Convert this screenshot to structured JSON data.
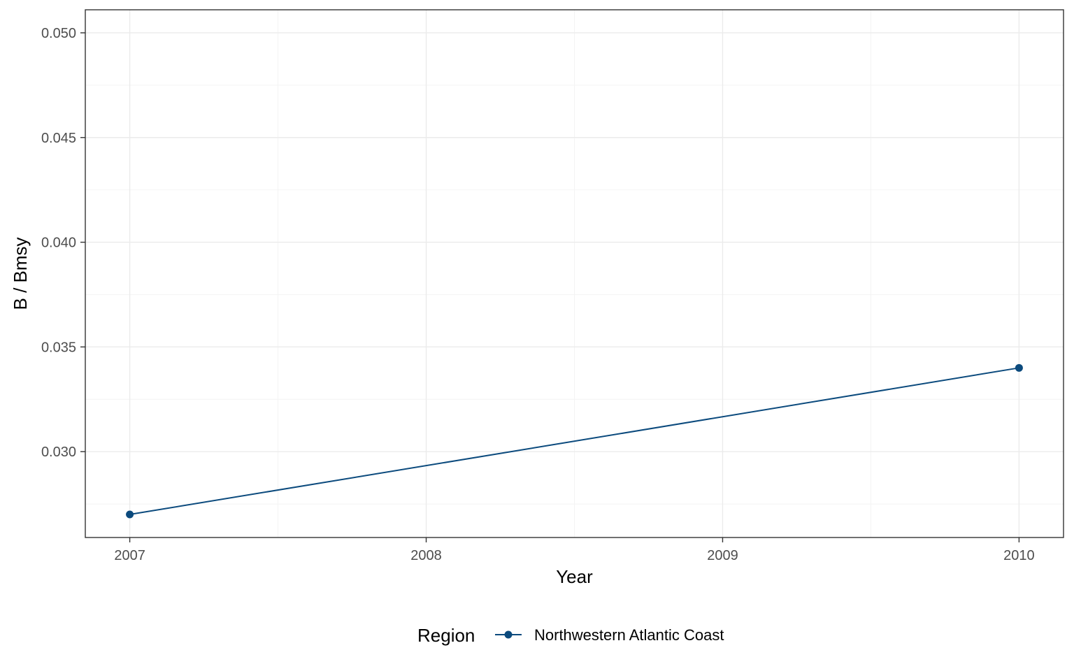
{
  "chart_data": {
    "type": "line",
    "title": "",
    "xlabel": "Year",
    "ylabel": "B / Bmsy",
    "x": [
      2007,
      2010
    ],
    "x_ticks": [
      "2007",
      "2008",
      "2009",
      "2010"
    ],
    "y_ticks": [
      "0.030",
      "0.035",
      "0.040",
      "0.045",
      "0.050"
    ],
    "xlim": [
      2006.85,
      2010.15
    ],
    "ylim": [
      0.0259,
      0.0511
    ],
    "grid": true,
    "legend": {
      "title": "Region",
      "position": "bottom"
    },
    "series": [
      {
        "name": "Northwestern Atlantic Coast",
        "color": "#0b4a7d",
        "values": [
          0.027,
          0.034
        ]
      }
    ]
  }
}
